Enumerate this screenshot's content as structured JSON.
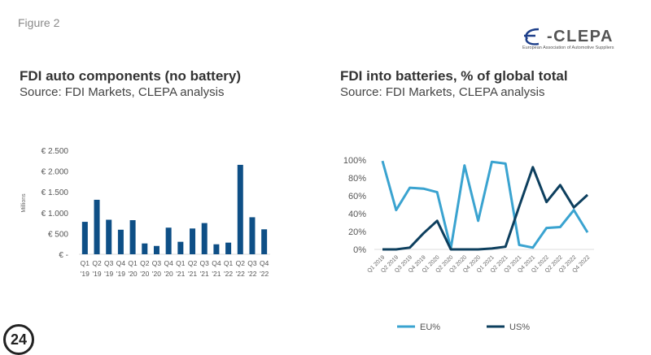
{
  "figure_label": "Figure 2",
  "logo": {
    "name": "CLEPA",
    "tagline": "European Association of Automotive Suppliers"
  },
  "badge": "24",
  "chart_data": [
    {
      "type": "bar",
      "title": "FDI auto components (no battery)",
      "subtitle": "Source: FDI Markets, CLEPA analysis",
      "ylabel": "Millions",
      "ylim": [
        0,
        2500
      ],
      "yticks": [
        "€ -",
        "€ 500",
        "€ 1.000",
        "€ 1.500",
        "€ 2.000",
        "€ 2.500"
      ],
      "categories": [
        [
          "Q1",
          "'19"
        ],
        [
          "Q2",
          "'19"
        ],
        [
          "Q3",
          "'19"
        ],
        [
          "Q4",
          "'19"
        ],
        [
          "Q1",
          "'20"
        ],
        [
          "Q2",
          "'20"
        ],
        [
          "Q3",
          "'20"
        ],
        [
          "Q4",
          "'20"
        ],
        [
          "Q1",
          "'21"
        ],
        [
          "Q2",
          "'21"
        ],
        [
          "Q3",
          "'21"
        ],
        [
          "Q4",
          "'21"
        ],
        [
          "Q1",
          "'22"
        ],
        [
          "Q2",
          "'22"
        ],
        [
          "Q3",
          "'22"
        ],
        [
          "Q4",
          "'22"
        ]
      ],
      "values": [
        780,
        1310,
        830,
        590,
        820,
        260,
        200,
        640,
        300,
        620,
        750,
        240,
        280,
        2150,
        890,
        600
      ],
      "color": "#0e4f86"
    },
    {
      "type": "line",
      "title": "FDI into batteries, % of global total",
      "subtitle": "Source: FDI Markets, CLEPA analysis",
      "ylim": [
        0,
        100
      ],
      "yticks": [
        "0%",
        "20%",
        "40%",
        "60%",
        "80%",
        "100%"
      ],
      "categories": [
        "Q1 2019",
        "Q2 2019",
        "Q3 2019",
        "Q4 2019",
        "Q1 2020",
        "Q2 2020",
        "Q3 2020",
        "Q4 2020",
        "Q1 2021",
        "Q2 2021",
        "Q3 2021",
        "Q4 2021",
        "Q1 2022",
        "Q2 2022",
        "Q3 2022",
        "Q4 2022"
      ],
      "series": [
        {
          "name": "EU%",
          "color": "#3aa3d0",
          "values": [
            99,
            44,
            69,
            68,
            64,
            1,
            94,
            32,
            98,
            96,
            5,
            2,
            24,
            25,
            44,
            19
          ]
        },
        {
          "name": "US%",
          "color": "#0d3f5e",
          "values": [
            0,
            0,
            2,
            18,
            32,
            0,
            0,
            0,
            1,
            3,
            48,
            92,
            53,
            72,
            47,
            61
          ]
        }
      ],
      "legend": "bottom"
    }
  ]
}
